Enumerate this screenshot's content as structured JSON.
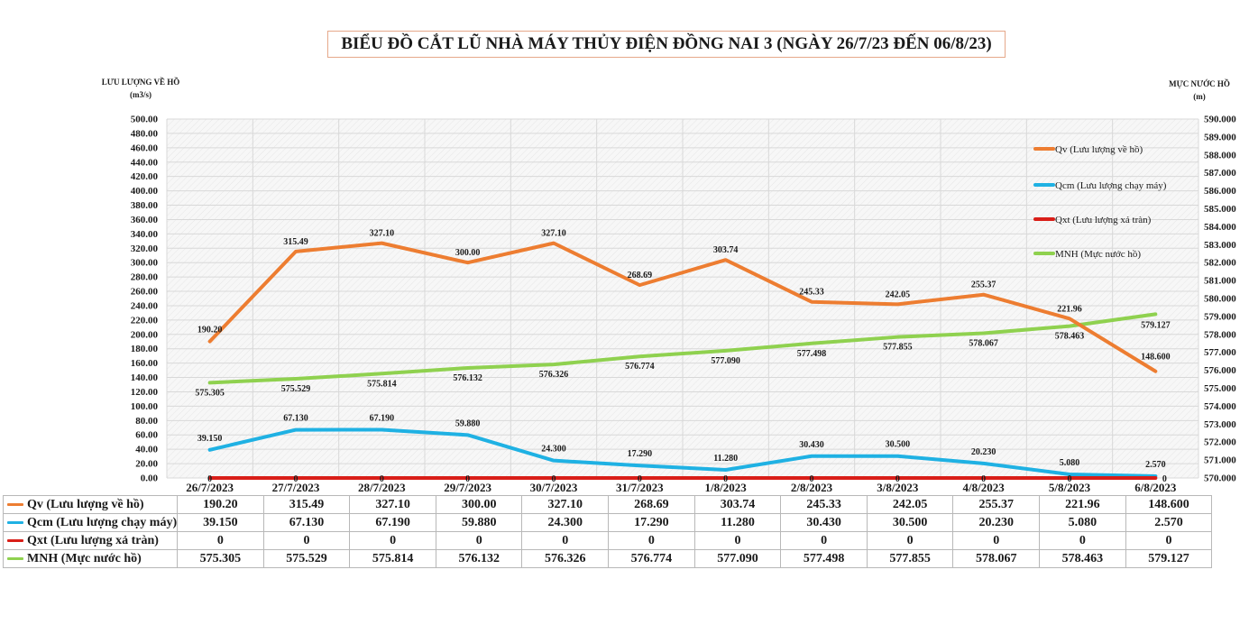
{
  "title": "BIỂU ĐỒ CẮT LŨ NHÀ MÁY THỦY ĐIỆN ĐỒNG NAI 3 (NGÀY 26/7/23 ĐẾN 06/8/23)",
  "left_axis_title": "LƯU LƯỢNG VỀ HỒ",
  "left_axis_unit": "(m3/s)",
  "right_axis_title": "MỰC NƯỚC HỒ",
  "right_axis_unit": "(m)",
  "chart_data": {
    "type": "line",
    "title": "BIỂU ĐỒ CẮT LŨ NHÀ MÁY THỦY ĐIỆN ĐỒNG NAI 3 (NGÀY 26/7/23 ĐẾN 06/8/23)",
    "categories": [
      "26/7/2023",
      "27/7/2023",
      "28/7/2023",
      "29/7/2023",
      "30/7/2023",
      "31/7/2023",
      "1/8/2023",
      "2/8/2023",
      "3/8/2023",
      "4/8/2023",
      "5/8/2023",
      "6/8/2023"
    ],
    "ylabel": "LƯU LƯỢNG VỀ HỒ (m3/s)",
    "ylabel_right": "MỰC NƯỚC HỒ (m)",
    "ylim": [
      0,
      500
    ],
    "ylim_right": [
      570,
      590
    ],
    "grid": true,
    "legend_position": "right",
    "series": [
      {
        "name": "Qv (Lưu lượng về hồ)",
        "axis": "left",
        "color": "#ed7d31",
        "values": [
          190.2,
          315.49,
          327.1,
          300.0,
          327.1,
          268.69,
          303.74,
          245.33,
          242.05,
          255.37,
          221.96,
          148.6
        ],
        "labels": [
          "190.20",
          "315.49",
          "327.10",
          "300.00",
          "327.10",
          "268.69",
          "303.74",
          "245.33",
          "242.05",
          "255.37",
          "221.96",
          "148.600"
        ]
      },
      {
        "name": "Qcm (Lưu lượng chạy máy)",
        "axis": "left",
        "color": "#1fb1e3",
        "values": [
          39.15,
          67.13,
          67.19,
          59.88,
          24.3,
          17.29,
          11.28,
          30.43,
          30.5,
          20.23,
          5.08,
          2.57
        ],
        "labels": [
          "39.150",
          "67.130",
          "67.190",
          "59.880",
          "24.300",
          "17.290",
          "11.280",
          "30.430",
          "30.500",
          "20.230",
          "5.080",
          "2.570"
        ]
      },
      {
        "name": "Qxt (Lưu lượng xả tràn)",
        "axis": "left",
        "color": "#d91e18",
        "values": [
          0,
          0,
          0,
          0,
          0,
          0,
          0,
          0,
          0,
          0,
          0,
          0
        ],
        "labels": [
          "0",
          "0",
          "0",
          "0",
          "0",
          "0",
          "0",
          "0",
          "0",
          "0",
          "0",
          "0"
        ]
      },
      {
        "name": "MNH (Mực nước hồ)",
        "axis": "right",
        "color": "#8fd14f",
        "values": [
          575.305,
          575.529,
          575.814,
          576.132,
          576.326,
          576.774,
          577.09,
          577.498,
          577.855,
          578.067,
          578.463,
          579.127
        ],
        "labels": [
          "575.305",
          "575.529",
          "575.814",
          "576.132",
          "576.326",
          "576.774",
          "577.090",
          "577.498",
          "577.855",
          "578.067",
          "578.463",
          "579.127"
        ]
      }
    ],
    "left_ticks": [
      "0.00",
      "20.00",
      "40.00",
      "60.00",
      "80.00",
      "100.00",
      "120.00",
      "140.00",
      "160.00",
      "180.00",
      "200.00",
      "220.00",
      "240.00",
      "260.00",
      "280.00",
      "300.00",
      "320.00",
      "340.00",
      "360.00",
      "380.00",
      "400.00",
      "420.00",
      "440.00",
      "460.00",
      "480.00",
      "500.00"
    ],
    "right_ticks": [
      "570.000",
      "571.000",
      "572.000",
      "573.000",
      "574.000",
      "575.000",
      "576.000",
      "577.000",
      "578.000",
      "579.000",
      "580.000",
      "581.000",
      "582.000",
      "583.000",
      "584.000",
      "585.000",
      "586.000",
      "587.000",
      "588.000",
      "589.000",
      "590.000"
    ]
  },
  "table": {
    "rows": [
      {
        "label": "Qv (Lưu lượng về hồ)",
        "color": "#ed7d31",
        "values": [
          "190.20",
          "315.49",
          "327.10",
          "300.00",
          "327.10",
          "268.69",
          "303.74",
          "245.33",
          "242.05",
          "255.37",
          "221.96",
          "148.600"
        ]
      },
      {
        "label": "Qcm (Lưu lượng chạy máy)",
        "color": "#1fb1e3",
        "values": [
          "39.150",
          "67.130",
          "67.190",
          "59.880",
          "24.300",
          "17.290",
          "11.280",
          "30.430",
          "30.500",
          "20.230",
          "5.080",
          "2.570"
        ]
      },
      {
        "label": "Qxt (Lưu lượng xả tràn)",
        "color": "#d91e18",
        "values": [
          "0",
          "0",
          "0",
          "0",
          "0",
          "0",
          "0",
          "0",
          "0",
          "0",
          "0",
          "0"
        ]
      },
      {
        "label": "MNH (Mực nước hồ)",
        "color": "#8fd14f",
        "values": [
          "575.305",
          "575.529",
          "575.814",
          "576.132",
          "576.326",
          "576.774",
          "577.090",
          "577.498",
          "577.855",
          "578.067",
          "578.463",
          "579.127"
        ]
      }
    ]
  }
}
